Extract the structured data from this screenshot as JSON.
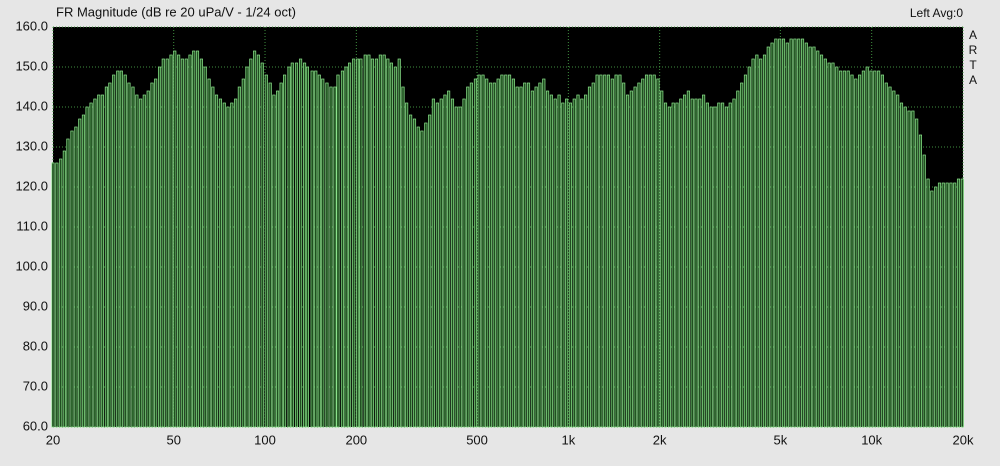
{
  "chart_data": {
    "type": "bar",
    "title": "FR Magnitude (dB re 20 uPa/V - 1/24 oct)",
    "annotation": "Left  Avg:0",
    "watermark": "ARTA",
    "log_x": true,
    "grid": true,
    "color": "#8fe88f",
    "xlim": [
      20,
      20000
    ],
    "xticks": [
      20,
      50,
      100,
      200,
      500,
      {
        "value": 1000,
        "label": "1k"
      },
      {
        "value": 2000,
        "label": "2k"
      },
      {
        "value": 5000,
        "label": "5k"
      },
      {
        "value": 10000,
        "label": "10k"
      },
      {
        "value": 20000,
        "label": "20k"
      }
    ],
    "ylim": [
      60,
      160
    ],
    "yticks": [
      {
        "value": 60,
        "label": "60.0"
      },
      {
        "value": 70,
        "label": "70.0"
      },
      {
        "value": 80,
        "label": "80.0"
      },
      {
        "value": 90,
        "label": "90.0"
      },
      {
        "value": 100,
        "label": "100.0"
      },
      {
        "value": 110,
        "label": "110.0"
      },
      {
        "value": 120,
        "label": "120.0"
      },
      {
        "value": 130,
        "label": "130.0"
      },
      {
        "value": 140,
        "label": "140.0"
      },
      {
        "value": 150,
        "label": "150.0"
      },
      {
        "value": 160,
        "label": "160.0"
      }
    ],
    "x": [
      20,
      20.6,
      21.2,
      21.8,
      22.4,
      23.1,
      23.8,
      24.5,
      25.2,
      25.9,
      26.7,
      27.5,
      28.3,
      29.1,
      30.0,
      30.8,
      31.7,
      32.7,
      33.6,
      34.6,
      35.6,
      36.7,
      37.8,
      38.9,
      40,
      41.2,
      42.4,
      43.6,
      44.9,
      46.2,
      47.6,
      49.0,
      50.4,
      51.9,
      53.4,
      55.0,
      56.6,
      58.2,
      59.9,
      61.7,
      63.5,
      65.4,
      67.3,
      69.2,
      71.3,
      73.4,
      75.5,
      77.7,
      80,
      82.3,
      84.8,
      87.2,
      89.8,
      92.4,
      95.1,
      97.9,
      101,
      104,
      107,
      110,
      113,
      116,
      120,
      123,
      127,
      131,
      135,
      138,
      143,
      147,
      151,
      155,
      160,
      165,
      170,
      174,
      180,
      185,
      190,
      196,
      202,
      207,
      214,
      220,
      226,
      233,
      240,
      247,
      254,
      261,
      269,
      277,
      285,
      293,
      302,
      311,
      320,
      329,
      339,
      349,
      359,
      370,
      381,
      392,
      403,
      415,
      427,
      440,
      453,
      466,
      479,
      494,
      508,
      523,
      538,
      554,
      570,
      587,
      604,
      622,
      640,
      659,
      678,
      698,
      718,
      739,
      761,
      783,
      806,
      830,
      854,
      879,
      905,
      932,
      959,
      987,
      1016,
      1046,
      1076,
      1108,
      1140,
      1174,
      1208,
      1244,
      1280,
      1318,
      1356,
      1396,
      1437,
      1479,
      1522,
      1567,
      1613,
      1660,
      1709,
      1759,
      1810,
      1863,
      1918,
      1974,
      2032,
      2091,
      2153,
      2216,
      2281,
      2348,
      2416,
      2487,
      2560,
      2635,
      2712,
      2792,
      2874,
      2958,
      3044,
      3134,
      3225,
      3320,
      3417,
      3517,
      3620,
      3727,
      3836,
      3948,
      4064,
      4183,
      4305,
      4432,
      4561,
      4695,
      4833,
      4974,
      5120,
      5270,
      5425,
      5584,
      5747,
      5916,
      6089,
      6268,
      6451,
      6640,
      6834,
      7035,
      7241,
      7453,
      7672,
      7897,
      8127,
      8366,
      8611,
      8863,
      9123,
      9390,
      9665,
      9948,
      10240,
      10540,
      10850,
      11170,
      11490,
      11830,
      12180,
      12540,
      12900,
      13280,
      13670,
      14070,
      14480,
      14900,
      15340,
      15790,
      16260,
      16730,
      17220,
      17730,
      18250,
      18780,
      19330,
      19900
    ],
    "values": [
      126,
      126,
      127,
      129,
      132,
      134,
      135,
      137,
      138,
      140,
      141,
      142,
      143,
      143,
      145,
      146,
      148,
      149,
      149,
      148,
      146,
      145,
      143,
      142,
      143,
      144,
      146,
      147,
      150,
      152,
      152,
      153,
      154,
      153,
      152,
      152,
      153,
      154,
      154,
      152,
      150,
      147,
      145,
      143,
      142,
      141,
      140,
      141,
      142,
      145,
      147,
      150,
      152,
      154,
      153,
      151,
      148,
      146,
      143,
      144,
      146,
      148,
      150,
      151,
      151,
      152,
      151,
      150,
      149,
      149,
      148,
      147,
      146,
      145,
      145,
      148,
      149,
      150,
      151,
      152,
      152,
      152,
      153,
      153,
      152,
      152,
      153,
      153,
      152,
      151,
      150,
      152,
      145,
      141,
      138,
      137,
      135,
      134,
      136,
      138,
      142,
      141,
      142,
      143,
      144,
      142,
      140,
      140,
      142,
      145,
      146,
      147,
      148,
      148,
      147,
      146,
      146,
      147,
      148,
      148,
      148,
      147,
      145,
      145,
      146,
      146,
      144,
      145,
      146,
      147,
      144,
      143,
      142,
      143,
      141,
      142,
      141,
      142,
      143,
      142,
      143,
      145,
      146,
      148,
      148,
      148,
      148,
      147,
      148,
      148,
      146,
      143,
      144,
      145,
      146,
      147,
      148,
      148,
      148,
      147,
      144,
      141,
      140,
      141,
      141,
      142,
      143,
      144,
      142,
      142,
      142,
      143,
      141,
      140,
      140,
      141,
      141,
      140,
      141,
      142,
      144,
      146,
      148,
      150,
      152,
      153,
      152,
      153,
      155,
      156,
      157,
      157,
      157,
      156,
      157,
      157,
      157,
      157,
      156,
      155,
      155,
      154,
      153,
      152,
      151,
      151,
      150,
      149,
      149,
      149,
      148,
      147,
      148,
      149,
      150,
      149,
      149,
      149,
      148,
      146,
      145,
      144,
      143,
      141,
      140,
      139,
      139,
      137,
      133,
      128,
      122,
      119,
      120,
      121,
      121,
      121,
      121,
      121,
      122,
      122
    ]
  }
}
